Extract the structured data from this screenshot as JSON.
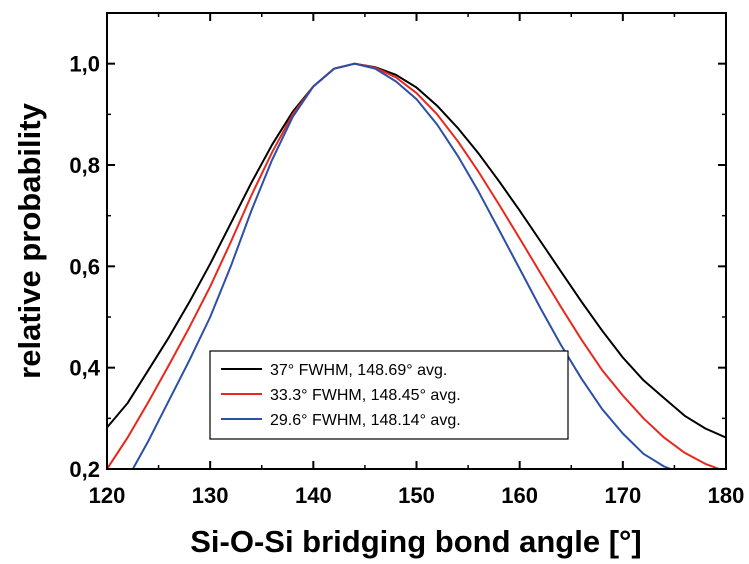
{
  "chart_data": {
    "type": "line",
    "title": "",
    "xlabel": "Si-O-Si bridging bond angle [°]",
    "ylabel": "relative probability",
    "xlim": [
      120,
      180
    ],
    "ylim": [
      0.2,
      1.1
    ],
    "xticks": [
      120,
      130,
      140,
      150,
      160,
      170,
      180
    ],
    "xtick_labels": [
      "120",
      "130",
      "140",
      "150",
      "160",
      "170",
      "180"
    ],
    "yticks": [
      0.2,
      0.4,
      0.6,
      0.8,
      1.0
    ],
    "ytick_labels": [
      "0,2",
      "0,4",
      "0,6",
      "0,8",
      "1,0"
    ],
    "grid": false,
    "legend_position": "bottom-center",
    "series": [
      {
        "name": "37° FWHM, 148.69° avg.",
        "color": "#000000",
        "x": [
          120,
          122,
          124,
          126,
          128,
          130,
          132,
          134,
          136,
          138,
          140,
          142,
          144,
          146,
          148,
          150,
          152,
          154,
          156,
          158,
          160,
          162,
          164,
          166,
          168,
          170,
          172,
          174,
          176,
          178,
          180
        ],
        "y": [
          0.282,
          0.33,
          0.395,
          0.46,
          0.53,
          0.605,
          0.685,
          0.765,
          0.84,
          0.905,
          0.955,
          0.99,
          1.0,
          0.993,
          0.978,
          0.953,
          0.917,
          0.873,
          0.823,
          0.768,
          0.71,
          0.65,
          0.59,
          0.53,
          0.473,
          0.42,
          0.375,
          0.34,
          0.305,
          0.28,
          0.262
        ]
      },
      {
        "name": "33.3° FWHM, 148.45° avg.",
        "color": "#e8281e",
        "x": [
          120,
          122,
          124,
          126,
          128,
          130,
          132,
          134,
          136,
          138,
          140,
          142,
          144,
          146,
          148,
          150,
          152,
          154,
          156,
          158,
          160,
          162,
          164,
          166,
          168,
          170,
          172,
          174,
          176,
          178,
          180
        ],
        "y": [
          0.2,
          0.262,
          0.332,
          0.405,
          0.48,
          0.56,
          0.648,
          0.74,
          0.825,
          0.9,
          0.955,
          0.99,
          1.0,
          0.992,
          0.973,
          0.942,
          0.9,
          0.847,
          0.787,
          0.722,
          0.655,
          0.587,
          0.52,
          0.455,
          0.395,
          0.345,
          0.3,
          0.262,
          0.232,
          0.21,
          0.195
        ]
      },
      {
        "name": "29.6° FWHM, 148.14° avg.",
        "color": "#2c4fa8",
        "x": [
          122.5,
          124,
          126,
          128,
          130,
          132,
          134,
          136,
          138,
          140,
          142,
          144,
          146,
          148,
          150,
          152,
          154,
          156,
          158,
          160,
          162,
          164,
          166,
          168,
          170,
          172,
          174,
          175.3
        ],
        "y": [
          0.2,
          0.255,
          0.335,
          0.415,
          0.5,
          0.6,
          0.71,
          0.81,
          0.895,
          0.955,
          0.99,
          1.0,
          0.99,
          0.965,
          0.93,
          0.88,
          0.818,
          0.748,
          0.672,
          0.595,
          0.518,
          0.445,
          0.378,
          0.318,
          0.27,
          0.23,
          0.205,
          0.195
        ]
      }
    ]
  }
}
